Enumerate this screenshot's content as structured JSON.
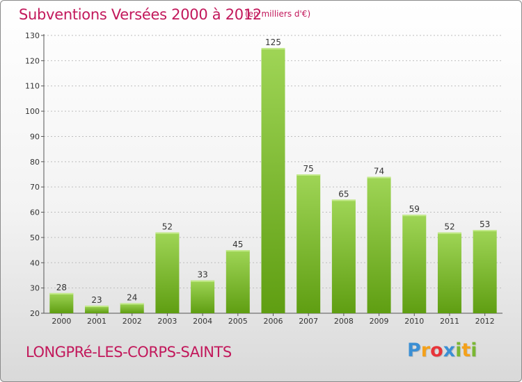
{
  "title": "Subventions Versées 2000 à 2012",
  "subtitle": "(en milliers d'€)",
  "commune": "LONGPRé-LES-CORPS-SAINTS",
  "logo": {
    "letters": [
      "P",
      "r",
      "o",
      "x",
      "i",
      "t",
      "i"
    ],
    "colors": [
      "#3b8fd4",
      "#f4a11a",
      "#e8343a",
      "#3b8fd4",
      "#7ab733",
      "#f4a11a",
      "#7ab733"
    ]
  },
  "colors": {
    "bar_top": "#9fd556",
    "bar_bottom": "#5f9e12",
    "grid": "#bdbdbd",
    "axis_text": "#333333",
    "title": "#c2185b"
  },
  "chart_data": {
    "type": "bar",
    "title": "Subventions Versées 2000 à 2012",
    "subtitle": "(en milliers d'€)",
    "categories": [
      "2000",
      "2001",
      "2002",
      "2003",
      "2004",
      "2005",
      "2006",
      "2007",
      "2008",
      "2009",
      "2010",
      "2011",
      "2012"
    ],
    "values": [
      28,
      23,
      24,
      52,
      33,
      45,
      125,
      75,
      65,
      74,
      59,
      52,
      53
    ],
    "ylim": [
      20,
      130
    ],
    "yticks": [
      20,
      30,
      40,
      50,
      60,
      70,
      80,
      90,
      100,
      110,
      120,
      130
    ],
    "grid": true
  }
}
